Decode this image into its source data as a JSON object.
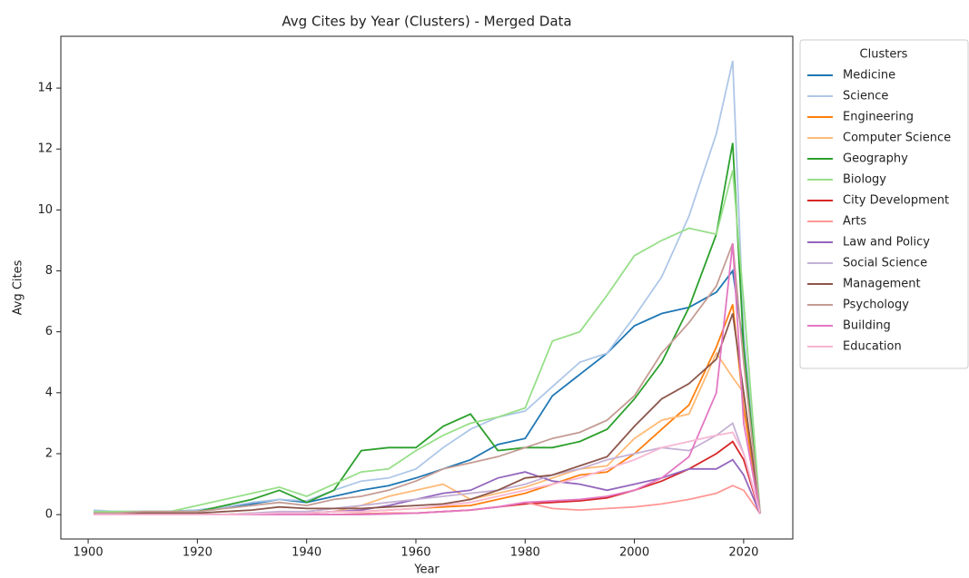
{
  "chart_data": {
    "type": "line",
    "title": "Avg Cites by Year (Clusters) - Merged Data",
    "x_label": "Year",
    "y_label": "Avg Cites",
    "legend_title": "Clusters",
    "legend": "outside right",
    "grid": false,
    "x": [
      1901,
      1905,
      1910,
      1915,
      1920,
      1925,
      1930,
      1935,
      1940,
      1945,
      1950,
      1955,
      1960,
      1965,
      1970,
      1975,
      1980,
      1985,
      1990,
      1995,
      2000,
      2005,
      2010,
      2015,
      2018,
      2020,
      2023
    ],
    "xlim": [
      1895,
      2029
    ],
    "xticks": [
      1900,
      1920,
      1940,
      1960,
      1980,
      2000,
      2020
    ],
    "ylim": [
      -0.8,
      15.7
    ],
    "yticks": [
      0,
      2,
      4,
      6,
      8,
      10,
      12,
      14
    ],
    "series": [
      {
        "name": "Medicine",
        "color": "#1f77b4",
        "values": [
          0.1,
          0.1,
          0.1,
          0.1,
          0.15,
          0.25,
          0.35,
          0.5,
          0.4,
          0.6,
          0.8,
          0.95,
          1.2,
          1.5,
          1.8,
          2.3,
          2.5,
          3.9,
          4.6,
          5.3,
          6.2,
          6.6,
          6.8,
          7.3,
          8.0,
          5.5,
          0.05
        ]
      },
      {
        "name": "Science",
        "color": "#aec7e8",
        "values": [
          0.15,
          0.1,
          0.1,
          0.1,
          0.15,
          0.25,
          0.4,
          0.5,
          0.45,
          0.8,
          1.1,
          1.2,
          1.5,
          2.2,
          2.8,
          3.2,
          3.4,
          4.2,
          5.0,
          5.3,
          6.5,
          7.8,
          9.8,
          12.5,
          14.9,
          6.0,
          0.1
        ]
      },
      {
        "name": "Engineering",
        "color": "#ff7f0e",
        "values": [
          0,
          0,
          0,
          0,
          0,
          0,
          0.05,
          0.05,
          0.05,
          0.1,
          0.1,
          0.15,
          0.2,
          0.25,
          0.3,
          0.5,
          0.7,
          1.0,
          1.3,
          1.4,
          2.0,
          2.8,
          3.6,
          5.5,
          6.9,
          3.5,
          0.05
        ]
      },
      {
        "name": "Computer Science",
        "color": "#ffbb78",
        "values": [
          0,
          0,
          0,
          0,
          0,
          0,
          0.05,
          0.05,
          0.05,
          0.1,
          0.3,
          0.6,
          0.8,
          1.0,
          0.5,
          0.7,
          0.9,
          1.2,
          1.5,
          1.6,
          2.5,
          3.1,
          3.3,
          5.3,
          4.5,
          4.0,
          0.05
        ]
      },
      {
        "name": "Geography",
        "color": "#2ca02c",
        "values": [
          0.05,
          0.05,
          0.1,
          0.1,
          0.1,
          0.3,
          0.5,
          0.8,
          0.4,
          0.8,
          2.1,
          2.2,
          2.2,
          2.9,
          3.3,
          2.1,
          2.2,
          2.2,
          2.4,
          2.8,
          3.8,
          5.0,
          6.8,
          9.2,
          12.2,
          5.5,
          0.05
        ]
      },
      {
        "name": "Biology",
        "color": "#98df8a",
        "values": [
          0.1,
          0.1,
          0.1,
          0.1,
          0.3,
          0.5,
          0.7,
          0.9,
          0.6,
          1.0,
          1.4,
          1.5,
          2.1,
          2.6,
          3.0,
          3.2,
          3.5,
          5.7,
          6.0,
          7.2,
          8.5,
          9.0,
          9.4,
          9.2,
          11.3,
          7.0,
          0.1
        ]
      },
      {
        "name": "City Development",
        "color": "#d62728",
        "values": [
          0,
          0,
          0,
          0,
          0,
          0,
          0,
          0,
          0,
          0,
          0.02,
          0.05,
          0.05,
          0.1,
          0.15,
          0.25,
          0.35,
          0.4,
          0.45,
          0.55,
          0.8,
          1.1,
          1.5,
          2.0,
          2.4,
          1.8,
          0.03
        ]
      },
      {
        "name": "Arts",
        "color": "#ff9896",
        "values": [
          0,
          0,
          0,
          0,
          0,
          0,
          0,
          0,
          0,
          0,
          0,
          0.05,
          0.05,
          0.1,
          0.15,
          0.25,
          0.4,
          0.2,
          0.15,
          0.2,
          0.25,
          0.35,
          0.5,
          0.7,
          0.95,
          0.8,
          0.03
        ]
      },
      {
        "name": "Law and Policy",
        "color": "#9467bd",
        "values": [
          0,
          0,
          0,
          0,
          0,
          0,
          0.02,
          0.05,
          0.05,
          0.1,
          0.15,
          0.3,
          0.5,
          0.7,
          0.8,
          1.2,
          1.4,
          1.1,
          1.0,
          0.8,
          1.0,
          1.2,
          1.5,
          1.5,
          1.8,
          1.3,
          0.03
        ]
      },
      {
        "name": "Social Science",
        "color": "#c5b0d5",
        "values": [
          0,
          0,
          0,
          0,
          0,
          0,
          0.05,
          0.1,
          0.1,
          0.2,
          0.3,
          0.4,
          0.5,
          0.6,
          0.7,
          0.8,
          1.0,
          1.3,
          1.5,
          1.8,
          2.0,
          2.2,
          2.1,
          2.6,
          3.0,
          2.0,
          0.05
        ]
      },
      {
        "name": "Management",
        "color": "#8c564b",
        "values": [
          0,
          0,
          0.05,
          0.05,
          0.05,
          0.1,
          0.15,
          0.25,
          0.2,
          0.2,
          0.2,
          0.25,
          0.3,
          0.35,
          0.5,
          0.8,
          1.2,
          1.3,
          1.6,
          1.9,
          2.9,
          3.8,
          4.3,
          5.1,
          6.6,
          4.0,
          0.05
        ]
      },
      {
        "name": "Psychology",
        "color": "#c49c94",
        "values": [
          0.05,
          0.05,
          0.1,
          0.1,
          0.1,
          0.2,
          0.3,
          0.4,
          0.3,
          0.5,
          0.6,
          0.8,
          1.1,
          1.5,
          1.7,
          1.9,
          2.2,
          2.5,
          2.7,
          3.1,
          3.9,
          5.3,
          6.3,
          7.5,
          8.9,
          5.0,
          0.1
        ]
      },
      {
        "name": "Building",
        "color": "#e377c2",
        "values": [
          0,
          0,
          0,
          0,
          0,
          0,
          0,
          0,
          0,
          0,
          0,
          0.02,
          0.05,
          0.1,
          0.15,
          0.25,
          0.4,
          0.45,
          0.5,
          0.6,
          0.8,
          1.2,
          1.9,
          4.0,
          8.9,
          3.0,
          0.03
        ]
      },
      {
        "name": "Education",
        "color": "#f7b6d2",
        "values": [
          0,
          0,
          0,
          0,
          0,
          0,
          0.02,
          0.05,
          0.05,
          0.1,
          0.1,
          0.15,
          0.2,
          0.3,
          0.4,
          0.6,
          0.8,
          1.0,
          1.2,
          1.5,
          1.8,
          2.2,
          2.4,
          2.6,
          2.7,
          2.0,
          0.05
        ]
      }
    ]
  }
}
